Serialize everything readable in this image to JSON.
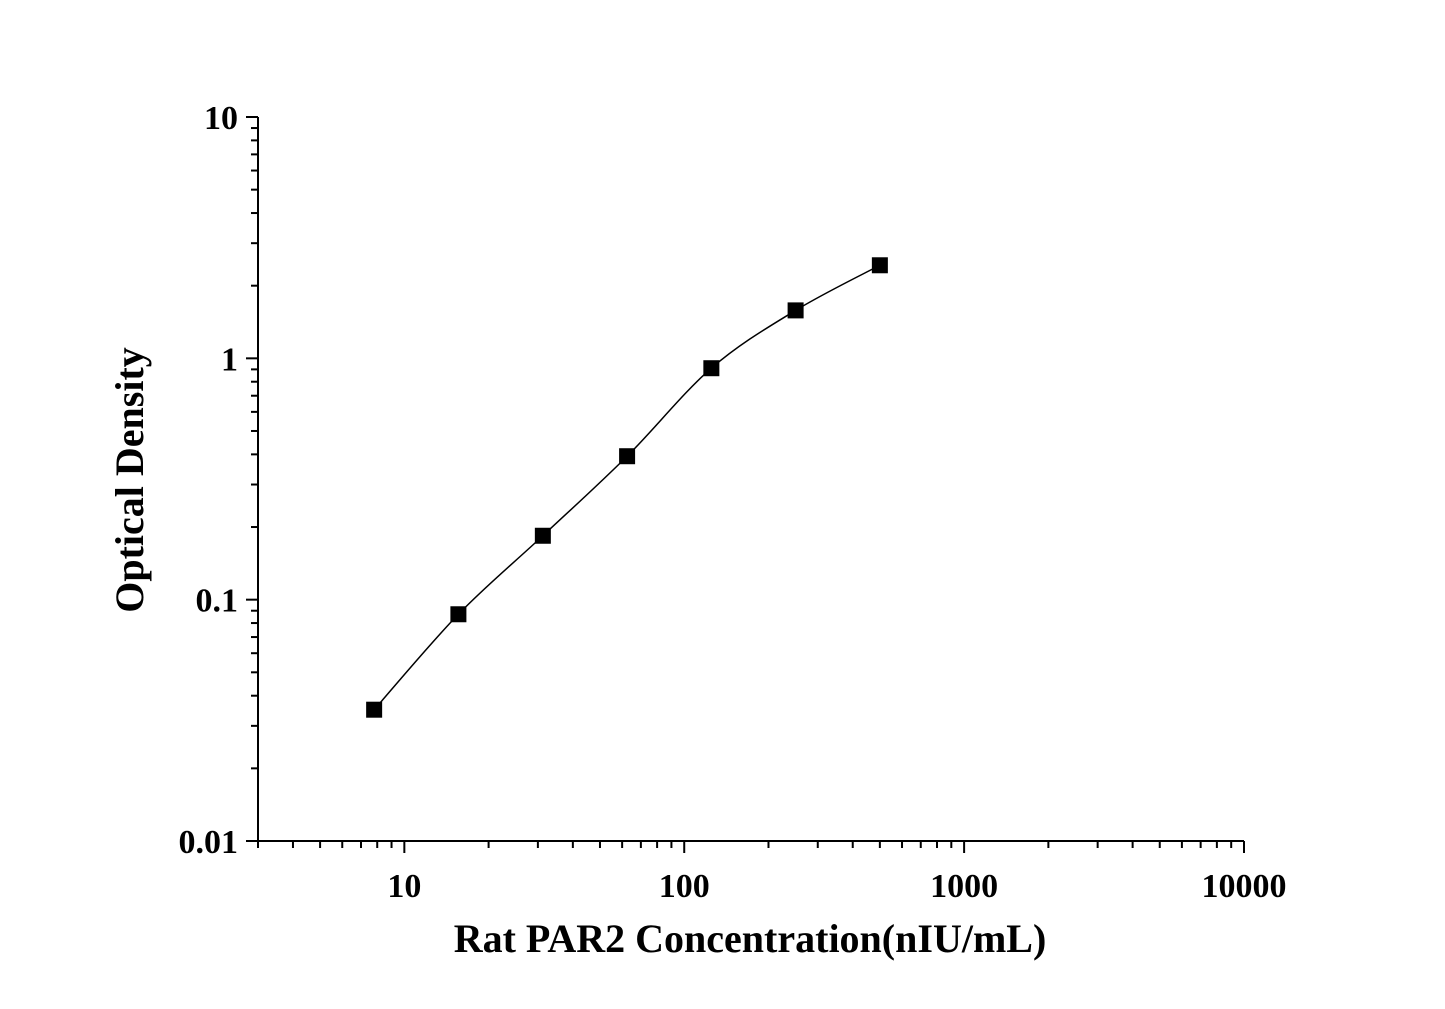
{
  "chart_data": {
    "type": "scatter",
    "title": "",
    "xlabel": "Rat PAR2 Concentration(nIU/mL)",
    "ylabel": "Optical Density",
    "xscale": "log",
    "yscale": "log",
    "xlim": [
      3,
      10000
    ],
    "ylim": [
      0.01,
      10
    ],
    "x_ticks": [
      "10",
      "100",
      "1000",
      "10000"
    ],
    "y_ticks": [
      "0.01",
      "0.1",
      "1",
      "10"
    ],
    "grid": false,
    "legend": "none",
    "marker": "square",
    "line": "smooth",
    "color": "#000000",
    "series": [
      {
        "x": [
          7.8,
          15.6,
          31.25,
          62.5,
          125,
          250,
          500
        ],
        "y": [
          0.035,
          0.087,
          0.184,
          0.393,
          0.91,
          1.58,
          2.43
        ]
      }
    ]
  }
}
